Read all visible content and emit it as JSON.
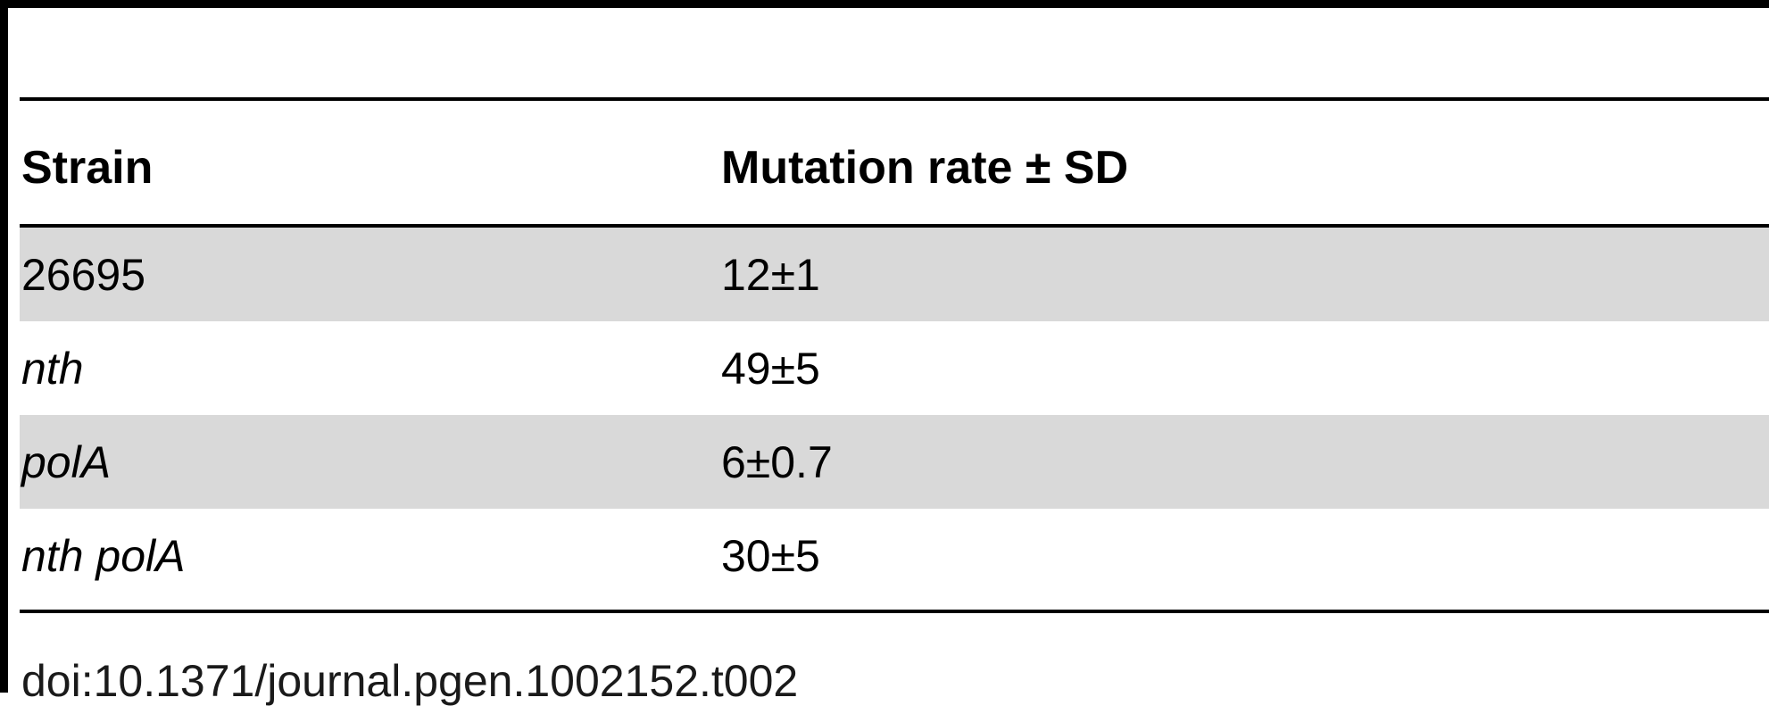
{
  "table": {
    "headers": {
      "strain": "Strain",
      "rate": "Mutation rate ± SD"
    },
    "rows": [
      {
        "strain": "26695",
        "rate": "12±1"
      },
      {
        "strain": "nth",
        "rate": "49±5"
      },
      {
        "strain": "polA",
        "rate": "6±0.7"
      },
      {
        "strain": "nth polA",
        "rate": "30±5"
      }
    ]
  },
  "caption": "doi:10.1371/journal.pgen.1002152.t002",
  "colors": {
    "row_shade": "#d9d9d9",
    "rule": "#000000"
  }
}
